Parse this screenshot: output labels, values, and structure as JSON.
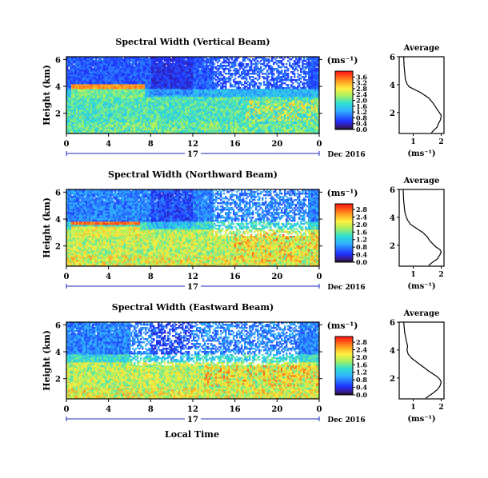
{
  "figure": {
    "xlabel": "Local Time",
    "date_label": "Dec 2016",
    "colorbar_unit": "(ms⁻¹)"
  },
  "chart_data": [
    {
      "type": "heatmap",
      "title": "Spectral Width (Vertical Beam)",
      "ylabel": "Height (km)",
      "xticks": [
        "0",
        "4",
        "8",
        "12",
        "16",
        "20",
        "0"
      ],
      "xlim": [
        0,
        24
      ],
      "day_label": "17",
      "yticks": [
        "2",
        "4",
        "6"
      ],
      "ylim": [
        0.5,
        6.2
      ],
      "colorbar": {
        "ticks": [
          "0.0",
          "0.4",
          "0.8",
          "1.2",
          "1.6",
          "2.0",
          "2.4",
          "2.8",
          "3.2",
          "3.6"
        ],
        "range": [
          0.0,
          4.0
        ]
      },
      "no_data_regions": "upper layers 3.8-6 km, 14-23 h",
      "features": [
        {
          "kind": "high_band",
          "x_range": [
            0.5,
            7.5
          ],
          "height": 4.0,
          "value": 3.4
        },
        {
          "kind": "patches_high",
          "x_range": [
            17,
            24
          ],
          "height_range": [
            1.5,
            3.0
          ],
          "value": 3.0
        }
      ]
    },
    {
      "type": "line",
      "title": "Average",
      "xlabel": "(ms⁻¹)",
      "xticks": [
        "1",
        "2"
      ],
      "yticks": [
        "2",
        "4",
        "6"
      ],
      "xlim": [
        0.5,
        2.1
      ],
      "ylim": [
        0.5,
        6.0
      ],
      "x": [
        0.66,
        0.67,
        0.68,
        0.7,
        0.72,
        0.75,
        0.78,
        0.82,
        0.85,
        0.95,
        1.25,
        1.55,
        1.7,
        1.8,
        1.9,
        2.0,
        1.98,
        1.9,
        1.85,
        1.75,
        1.65
      ],
      "y": [
        6.0,
        5.6,
        5.2,
        4.8,
        4.4,
        4.2,
        4.05,
        3.95,
        3.85,
        3.75,
        3.45,
        3.05,
        2.7,
        2.4,
        2.1,
        1.8,
        1.5,
        1.2,
        0.95,
        0.75,
        0.55
      ]
    },
    {
      "type": "heatmap",
      "title": "Spectral Width (Northward Beam)",
      "ylabel": "Height (km)",
      "xticks": [
        "0",
        "4",
        "8",
        "12",
        "16",
        "20",
        "0"
      ],
      "xlim": [
        0,
        24
      ],
      "day_label": "17",
      "yticks": [
        "2",
        "4",
        "6"
      ],
      "ylim": [
        0.5,
        6.2
      ],
      "colorbar": {
        "ticks": [
          "0.0",
          "0.4",
          "0.8",
          "1.2",
          "1.6",
          "2.0",
          "2.4",
          "2.8"
        ],
        "range": [
          0.0,
          3.1
        ]
      },
      "no_data_regions": "upper layers 2.5-6 km, 14-23 h",
      "features": [
        {
          "kind": "high_band",
          "x_range": [
            0.5,
            7.0
          ],
          "height": 3.7,
          "value": 2.8
        },
        {
          "kind": "patches_high",
          "x_range": [
            16,
            24
          ],
          "height_range": [
            0.8,
            3.0
          ],
          "value": 2.7
        }
      ]
    },
    {
      "type": "line",
      "title": "Average",
      "xlabel": "(ms⁻¹)",
      "xticks": [
        "1",
        "2"
      ],
      "yticks": [
        "2",
        "4",
        "6"
      ],
      "xlim": [
        0.5,
        2.1
      ],
      "ylim": [
        0.5,
        6.0
      ],
      "x": [
        0.64,
        0.65,
        0.66,
        0.68,
        0.7,
        0.74,
        0.8,
        0.9,
        1.05,
        1.2,
        1.35,
        1.5,
        1.6,
        1.7,
        1.8,
        1.95,
        2.0,
        1.95,
        1.85,
        1.7,
        1.55
      ],
      "y": [
        6.0,
        5.6,
        5.2,
        4.8,
        4.4,
        4.1,
        3.8,
        3.5,
        3.3,
        3.1,
        2.9,
        2.6,
        2.3,
        2.1,
        1.9,
        1.7,
        1.5,
        1.3,
        1.0,
        0.8,
        0.55
      ]
    },
    {
      "type": "heatmap",
      "title": "Spectral Width (Eastward Beam)",
      "ylabel": "Height (km)",
      "xticks": [
        "0",
        "4",
        "8",
        "12",
        "16",
        "20",
        "0"
      ],
      "xlim": [
        0,
        24
      ],
      "day_label": "17",
      "yticks": [
        "2",
        "4",
        "6"
      ],
      "ylim": [
        0.5,
        6.2
      ],
      "colorbar": {
        "ticks": [
          "0.0",
          "0.4",
          "0.8",
          "1.2",
          "1.6",
          "2.0",
          "2.4",
          "2.8"
        ],
        "range": [
          0.0,
          3.1
        ]
      },
      "no_data_regions": "upper layers 2.5-6 km, 6-22 h",
      "features": [
        {
          "kind": "patches_high",
          "x_range": [
            13,
            24
          ],
          "height_range": [
            1.5,
            3.0
          ],
          "value": 2.7
        }
      ]
    },
    {
      "type": "line",
      "title": "Average",
      "xlabel": "(ms⁻¹)",
      "xticks": [
        "1",
        "2"
      ],
      "yticks": [
        "2",
        "4",
        "6"
      ],
      "xlim": [
        0.5,
        2.1
      ],
      "ylim": [
        0.5,
        6.0
      ],
      "x": [
        0.66,
        0.68,
        0.7,
        0.73,
        0.76,
        0.8,
        0.78,
        0.82,
        0.95,
        1.15,
        1.35,
        1.55,
        1.7,
        1.85,
        1.95,
        2.0,
        1.95,
        1.85,
        1.7,
        1.55,
        1.45
      ],
      "y": [
        6.0,
        5.6,
        5.2,
        4.9,
        4.6,
        4.3,
        4.0,
        3.7,
        3.4,
        3.1,
        2.8,
        2.5,
        2.3,
        2.1,
        1.9,
        1.7,
        1.4,
        1.15,
        0.9,
        0.7,
        0.55
      ]
    }
  ]
}
